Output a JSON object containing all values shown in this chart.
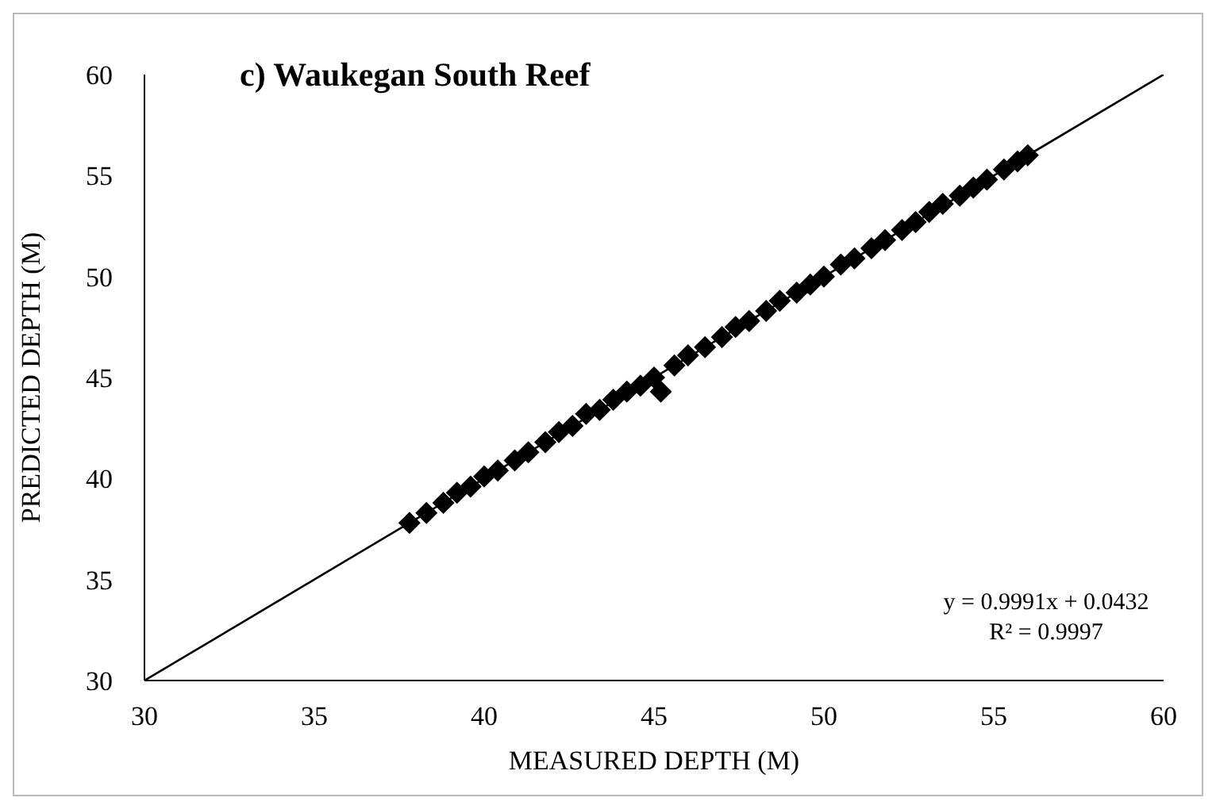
{
  "chart_data": {
    "type": "scatter",
    "title": "c) Waukegan South Reef",
    "xlabel": "MEASURED DEPTH (M)",
    "ylabel": "PREDICTED DEPTH (M)",
    "xlim": [
      30,
      60
    ],
    "xticks": [
      30,
      35,
      40,
      45,
      50,
      55,
      60
    ],
    "ylim": [
      30,
      60
    ],
    "yticks": [
      30,
      35,
      40,
      45,
      50,
      55,
      60
    ],
    "marker": "diamond",
    "series": [
      {
        "color": "#000000",
        "x": [
          37.8,
          38.3,
          38.8,
          39.2,
          39.6,
          40.0,
          40.4,
          40.9,
          41.3,
          41.8,
          42.2,
          42.6,
          43.0,
          43.4,
          43.8,
          44.2,
          44.6,
          45.0,
          45.2,
          45.6,
          46.0,
          46.5,
          47.0,
          47.4,
          47.8,
          48.3,
          48.7,
          49.2,
          49.6,
          50.0,
          50.5,
          50.9,
          51.4,
          51.8,
          52.3,
          52.7,
          53.1,
          53.5,
          54.0,
          54.4,
          54.8,
          55.3,
          55.7,
          56.0
        ],
        "values": [
          37.8,
          38.3,
          38.8,
          39.3,
          39.6,
          40.1,
          40.4,
          40.9,
          41.3,
          41.8,
          42.3,
          42.6,
          43.2,
          43.4,
          43.9,
          44.3,
          44.6,
          45.0,
          44.3,
          45.6,
          46.1,
          46.5,
          47.0,
          47.5,
          47.8,
          48.3,
          48.8,
          49.2,
          49.6,
          50.0,
          50.6,
          50.9,
          51.4,
          51.8,
          52.3,
          52.7,
          53.2,
          53.6,
          54.0,
          54.4,
          54.8,
          55.3,
          55.7,
          56.0
        ]
      },
      {
        "type": "line",
        "color": "#000000",
        "marker": "none",
        "line_style": "solid",
        "x": [
          30,
          60
        ],
        "values": [
          30,
          60
        ]
      }
    ],
    "annotations": [
      "y = 0.9991x + 0.0432",
      "R² = 0.9997"
    ]
  }
}
